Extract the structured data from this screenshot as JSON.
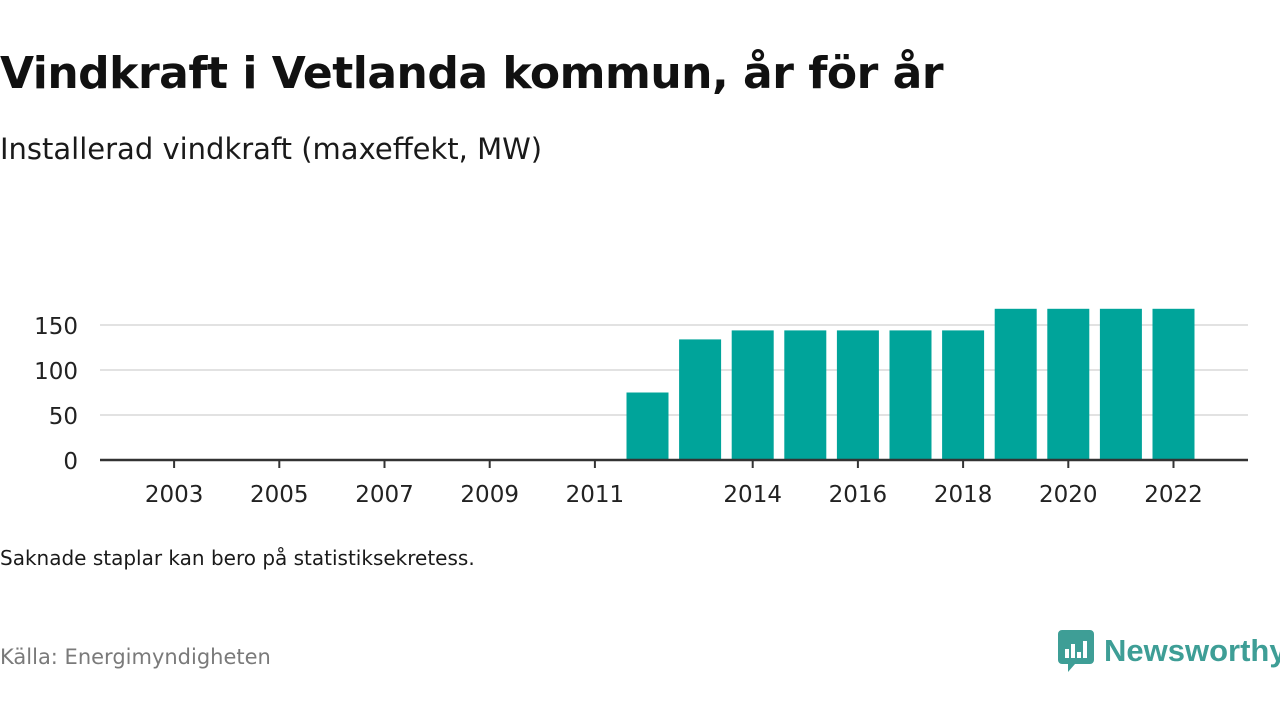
{
  "title": "Vindkraft i Vetlanda kommun, år för år",
  "subtitle": "Installerad vindkraft (maxeffekt, MW)",
  "note": "Saknade staplar kan bero på statistiksekretess.",
  "source": "Källa: Energimyndigheten",
  "brand": {
    "name": "Newsworthy",
    "icon": "newsworthy-logo-icon",
    "color": "#3e9e96"
  },
  "colors": {
    "bar": "#00a49a",
    "grid": "#d9d9d9",
    "axis": "#333333"
  },
  "chart_data": {
    "type": "bar",
    "categories": [
      "2002",
      "2003",
      "2004",
      "2005",
      "2006",
      "2007",
      "2008",
      "2009",
      "2010",
      "2011",
      "2012",
      "2013",
      "2014",
      "2015",
      "2016",
      "2017",
      "2018",
      "2019",
      "2020",
      "2021",
      "2022"
    ],
    "values": [
      0,
      0,
      0,
      0,
      0,
      0,
      0,
      0,
      0,
      0,
      75,
      134,
      144,
      144,
      144,
      144,
      144,
      168,
      168,
      168,
      168
    ],
    "xtick_labels": [
      "2003",
      "2005",
      "2007",
      "2009",
      "2011",
      "2014",
      "2016",
      "2018",
      "2020",
      "2022"
    ],
    "yticks": [
      0,
      50,
      100,
      150
    ],
    "ylim": [
      0,
      170
    ],
    "xlabel": "",
    "ylabel": "",
    "grid": true,
    "legend": false
  }
}
